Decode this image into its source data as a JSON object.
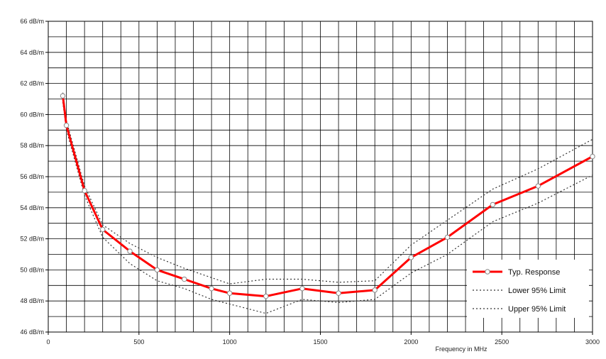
{
  "chart_data": {
    "type": "line",
    "title": "",
    "xlabel": "Frequency in MHz",
    "ylabel": "",
    "xlim": [
      0,
      3000
    ],
    "ylim": [
      46,
      66
    ],
    "grid": true,
    "legend_position": "bottom-right",
    "x_ticks": [
      0,
      500,
      1000,
      1500,
      2000,
      2500,
      3000
    ],
    "x_tick_labels": [
      "0",
      "500",
      "1000",
      "1500",
      "2000",
      "2500",
      "3000"
    ],
    "y_ticks": [
      46,
      48,
      50,
      52,
      54,
      56,
      58,
      60,
      62,
      64,
      66
    ],
    "y_tick_labels": [
      "46 dB/m",
      "48 dB/m",
      "50 dB/m",
      "52 dB/m",
      "54 dB/m",
      "56 dB/m",
      "58 dB/m",
      "60 dB/m",
      "62 dB/m",
      "64 dB/m",
      "66 dB/m"
    ],
    "series": [
      {
        "name": "Typ. Response",
        "color": "#ff0000",
        "style": "solid-with-markers",
        "x": [
          80,
          100,
          200,
          300,
          450,
          600,
          750,
          900,
          1000,
          1200,
          1400,
          1600,
          1800,
          2000,
          2200,
          2450,
          2700,
          3000
        ],
        "y": [
          61.2,
          59.3,
          55.1,
          52.6,
          51.2,
          50.0,
          49.4,
          48.8,
          48.5,
          48.3,
          48.8,
          48.5,
          48.7,
          50.8,
          52.1,
          54.2,
          55.4,
          57.3
        ]
      },
      {
        "name": "Lower 95% Limit",
        "color": "#333333",
        "style": "dotted",
        "x": [
          80,
          100,
          200,
          300,
          450,
          600,
          750,
          900,
          1000,
          1200,
          1400,
          1600,
          1800,
          2000,
          2200,
          2450,
          2700,
          3000
        ],
        "y": [
          60.8,
          59.0,
          54.8,
          52.1,
          50.4,
          49.3,
          48.8,
          48.1,
          47.8,
          47.2,
          48.1,
          47.9,
          48.1,
          49.8,
          51.0,
          53.1,
          54.3,
          56.1
        ]
      },
      {
        "name": "Upper 95% Limit",
        "color": "#333333",
        "style": "dotted",
        "x": [
          80,
          100,
          200,
          300,
          450,
          600,
          750,
          900,
          1000,
          1200,
          1400,
          1600,
          1800,
          2000,
          2200,
          2450,
          2700,
          3000
        ],
        "y": [
          61.4,
          59.6,
          55.4,
          52.9,
          51.7,
          50.8,
          50.1,
          49.5,
          49.1,
          49.4,
          49.4,
          49.2,
          49.3,
          51.6,
          53.2,
          55.2,
          56.5,
          58.4
        ]
      }
    ]
  }
}
